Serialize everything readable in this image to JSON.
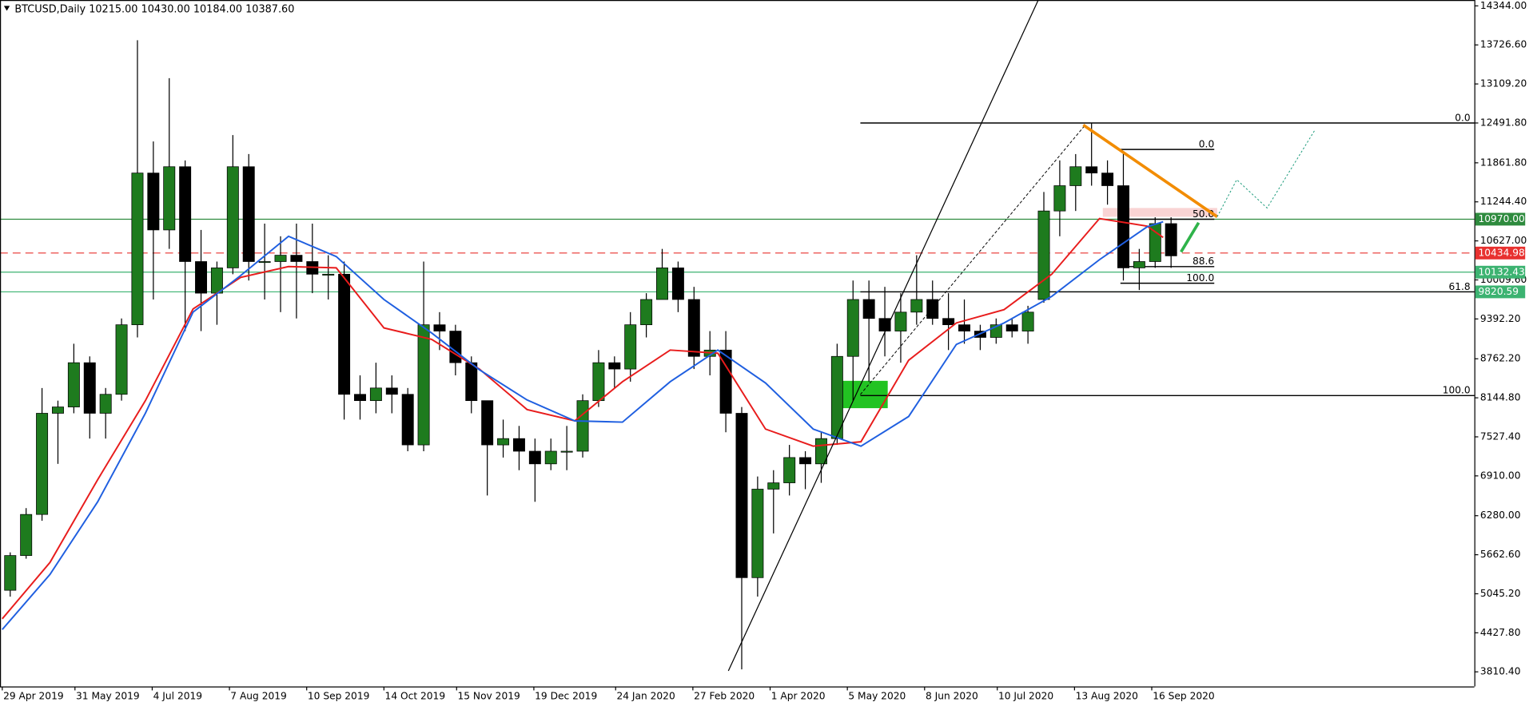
{
  "chart_data": {
    "type": "candlestick",
    "title": "BTCUSD,Daily  10215.00 10430.00 10184.00 10387.60",
    "xlim": [
      "2019-04-28",
      "2021-02-05"
    ],
    "ylim": [
      3579,
      14437
    ],
    "xticks": [
      {
        "value": "2019-04-29",
        "label": "29 Apr 2019"
      },
      {
        "value": "2019-05-31",
        "label": "31 May 2019"
      },
      {
        "value": "2019-07-04",
        "label": "4 Jul 2019"
      },
      {
        "value": "2019-08-07",
        "label": "7 Aug 2019"
      },
      {
        "value": "2019-09-10",
        "label": "10 Sep 2019"
      },
      {
        "value": "2019-10-14",
        "label": "14 Oct 2019"
      },
      {
        "value": "2019-11-15",
        "label": "15 Nov 2019"
      },
      {
        "value": "2019-12-19",
        "label": "19 Dec 2019"
      },
      {
        "value": "2020-01-24",
        "label": "24 Jan 2020"
      },
      {
        "value": "2020-02-27",
        "label": "27 Feb 2020"
      },
      {
        "value": "2020-04-01",
        "label": "1 Apr 2020"
      },
      {
        "value": "2020-05-05",
        "label": "5 May 2020"
      },
      {
        "value": "2020-06-08",
        "label": "8 Jun 2020"
      },
      {
        "value": "2020-07-10",
        "label": "10 Jul 2020"
      },
      {
        "value": "2020-08-13",
        "label": "13 Aug 2020"
      },
      {
        "value": "2020-09-16",
        "label": "16 Sep 2020"
      }
    ],
    "yticks": [
      {
        "value": 14344,
        "label": "14344.00"
      },
      {
        "value": 13726.6,
        "label": "13726.60"
      },
      {
        "value": 13109.2,
        "label": "13109.20"
      },
      {
        "value": 12491.8,
        "label": "12491.80"
      },
      {
        "value": 11861.8,
        "label": "11861.80"
      },
      {
        "value": 11244.4,
        "label": "11244.40"
      },
      {
        "value": 10627,
        "label": "10627.00"
      },
      {
        "value": 10009.6,
        "label": "10009.60"
      },
      {
        "value": 9392.2,
        "label": "9392.20"
      },
      {
        "value": 8762.2,
        "label": "8762.20"
      },
      {
        "value": 8144.8,
        "label": "8144.80"
      },
      {
        "value": 7527.4,
        "label": "7527.40"
      },
      {
        "value": 6910,
        "label": "6910.00"
      },
      {
        "value": 6280,
        "label": "6280.00"
      },
      {
        "value": 5662.6,
        "label": "5662.60"
      },
      {
        "value": 5045.2,
        "label": "5045.20"
      },
      {
        "value": 4427.8,
        "label": "4427.80"
      },
      {
        "value": 3810.4,
        "label": "3810.40"
      }
    ],
    "up_color": "#1e7b1e",
    "down_color": "#000000",
    "x": [
      "2019-04-29",
      "2019-05-06",
      "2019-05-13",
      "2019-05-20",
      "2019-05-27",
      "2019-06-03",
      "2019-06-10",
      "2019-06-17",
      "2019-06-24",
      "2019-07-01",
      "2019-07-08",
      "2019-07-15",
      "2019-07-22",
      "2019-07-29",
      "2019-08-05",
      "2019-08-12",
      "2019-08-19",
      "2019-08-26",
      "2019-09-02",
      "2019-09-09",
      "2019-09-16",
      "2019-09-23",
      "2019-09-30",
      "2019-10-07",
      "2019-10-14",
      "2019-10-21",
      "2019-10-28",
      "2019-11-04",
      "2019-11-11",
      "2019-11-18",
      "2019-11-25",
      "2019-12-02",
      "2019-12-09",
      "2019-12-16",
      "2019-12-23",
      "2019-12-30",
      "2020-01-06",
      "2020-01-13",
      "2020-01-20",
      "2020-01-27",
      "2020-02-03",
      "2020-02-10",
      "2020-02-17",
      "2020-02-24",
      "2020-03-02",
      "2020-03-09",
      "2020-03-16",
      "2020-03-23",
      "2020-03-30",
      "2020-04-06",
      "2020-04-13",
      "2020-04-20",
      "2020-04-27",
      "2020-05-04",
      "2020-05-11",
      "2020-05-18",
      "2020-05-25",
      "2020-06-01",
      "2020-06-08",
      "2020-06-15",
      "2020-06-22",
      "2020-06-29",
      "2020-07-06",
      "2020-07-13",
      "2020-07-20",
      "2020-07-27",
      "2020-08-03",
      "2020-08-10",
      "2020-08-17",
      "2020-08-24",
      "2020-08-31",
      "2020-09-07",
      "2020-09-14",
      "2020-09-21"
    ],
    "open": [
      5100,
      5650,
      6300,
      7900,
      8000,
      8700,
      7900,
      8200,
      9300,
      11700,
      10800,
      11800,
      10300,
      9800,
      10200,
      11800,
      10300,
      10300,
      10400,
      10300,
      10100,
      10100,
      8200,
      8100,
      8300,
      8200,
      7400,
      9300,
      9200,
      8700,
      8100,
      7400,
      7500,
      7300,
      7100,
      7300,
      7300,
      8100,
      8700,
      8600,
      9300,
      9700,
      10200,
      9700,
      8800,
      8900,
      7900,
      5300,
      6700,
      6800,
      7200,
      7100,
      7500,
      8800,
      9700,
      9400,
      9200,
      9500,
      9700,
      9400,
      9300,
      9200,
      9100,
      9300,
      9200,
      9700,
      11100,
      11500,
      11800,
      11700,
      11500,
      10200,
      10300,
      10900
    ],
    "high": [
      5700,
      6400,
      8300,
      8100,
      9000,
      8800,
      8300,
      9400,
      13800,
      12200,
      13200,
      11900,
      10800,
      10300,
      12300,
      12000,
      10900,
      10700,
      10900,
      10900,
      10400,
      10300,
      8500,
      8700,
      8500,
      8300,
      10300,
      9500,
      9300,
      8800,
      8100,
      7800,
      7700,
      7500,
      7500,
      7700,
      8200,
      8900,
      8800,
      9500,
      9800,
      10500,
      10300,
      9900,
      9200,
      9200,
      8000,
      6900,
      7000,
      7400,
      7300,
      7600,
      9000,
      10000,
      10000,
      9900,
      9800,
      10400,
      10000,
      9800,
      9700,
      9300,
      9400,
      9400,
      9600,
      11400,
      11900,
      12000,
      12490,
      11900,
      12050,
      10500,
      11000,
      11000
    ],
    "low": [
      5000,
      5600,
      6200,
      7100,
      7900,
      7500,
      7500,
      8100,
      9100,
      9700,
      10500,
      9200,
      9200,
      9300,
      10100,
      10000,
      9700,
      9500,
      9400,
      9800,
      9700,
      7800,
      7800,
      7900,
      7900,
      7300,
      7300,
      8900,
      8500,
      7900,
      6600,
      7200,
      7000,
      6500,
      7000,
      7000,
      7200,
      8000,
      8300,
      8400,
      9100,
      9700,
      9500,
      8600,
      8500,
      7600,
      3850,
      5000,
      6000,
      6600,
      6700,
      6800,
      7400,
      8100,
      8400,
      8800,
      8700,
      9300,
      9300,
      8900,
      9000,
      8900,
      9000,
      9100,
      9000,
      9650,
      10700,
      11100,
      11500,
      11200,
      10000,
      9850,
      10200,
      10200
    ],
    "close": [
      5650,
      6300,
      7900,
      8000,
      8700,
      7900,
      8200,
      9300,
      11700,
      10800,
      11800,
      10300,
      9800,
      10200,
      11800,
      10300,
      10300,
      10400,
      10300,
      10100,
      10100,
      8200,
      8100,
      8300,
      8200,
      7400,
      9300,
      9200,
      8700,
      8100,
      7400,
      7500,
      7300,
      7100,
      7300,
      7300,
      8100,
      8700,
      8600,
      9300,
      9700,
      10200,
      9700,
      8800,
      8900,
      7900,
      5300,
      6700,
      6800,
      7200,
      7100,
      7500,
      8800,
      9700,
      9400,
      9200,
      9500,
      9700,
      9400,
      9300,
      9200,
      9100,
      9300,
      9200,
      9500,
      11100,
      11500,
      11800,
      11700,
      11500,
      10200,
      10300,
      10900,
      10390
    ],
    "moving_averages": [
      {
        "color": "#e81c1c",
        "x": [
          "2019-04-29",
          "2019-05-20",
          "2019-06-10",
          "2019-07-01",
          "2019-07-22",
          "2019-08-12",
          "2019-09-02",
          "2019-09-23",
          "2019-10-14",
          "2019-11-04",
          "2019-11-25",
          "2019-12-16",
          "2020-01-06",
          "2020-01-27",
          "2020-02-17",
          "2020-03-09",
          "2020-03-30",
          "2020-04-20",
          "2020-05-11",
          "2020-06-01",
          "2020-06-22",
          "2020-07-13",
          "2020-08-03",
          "2020-08-24",
          "2020-09-14",
          "2020-09-21"
        ],
        "values": [
          4650,
          5540,
          6850,
          8100,
          9550,
          10050,
          10220,
          10200,
          9250,
          9070,
          8600,
          7960,
          7780,
          8400,
          8900,
          8850,
          7650,
          7380,
          7450,
          8740,
          9330,
          9540,
          10100,
          10980,
          10860,
          10681
        ]
      },
      {
        "color": "#1f5fe0",
        "x": [
          "2019-04-29",
          "2019-05-20",
          "2019-06-10",
          "2019-07-01",
          "2019-07-22",
          "2019-08-12",
          "2019-09-02",
          "2019-09-23",
          "2019-10-14",
          "2019-11-04",
          "2019-11-25",
          "2019-12-16",
          "2020-01-06",
          "2020-01-27",
          "2020-02-17",
          "2020-03-09",
          "2020-03-30",
          "2020-04-20",
          "2020-05-11",
          "2020-06-01",
          "2020-06-22",
          "2020-07-13",
          "2020-08-03",
          "2020-08-24",
          "2020-09-14",
          "2020-09-21"
        ],
        "values": [
          4480,
          5350,
          6500,
          7900,
          9500,
          10080,
          10700,
          10380,
          9700,
          9170,
          8590,
          8110,
          7780,
          7760,
          8400,
          8900,
          8380,
          7650,
          7380,
          7850,
          8990,
          9330,
          9750,
          10330,
          10850,
          10930
        ]
      }
    ],
    "price_lines": [
      {
        "value": 10970,
        "label": "10970.00",
        "color": "#2e8b3e",
        "style": "solid"
      },
      {
        "value": 10434.98,
        "label": "10434.98",
        "color": "#e8312f",
        "style": "dashed"
      },
      {
        "value": 10132.43,
        "label": "10132.43",
        "color": "#3cb371",
        "style": "solid"
      },
      {
        "value": 9820.59,
        "label": "9820.59",
        "color": "#3cb371",
        "style": "solid"
      }
    ],
    "fibonacci": [
      {
        "levels": [
          {
            "label": "0.0",
            "value": 12491.8
          },
          {
            "label": "61.8",
            "value": 9820.59
          },
          {
            "label": "100.0",
            "value": 8180
          }
        ]
      },
      {
        "levels": [
          {
            "label": "0.0",
            "value": 12073
          },
          {
            "label": "50.0",
            "value": 10970
          },
          {
            "label": "88.6",
            "value": 10220
          },
          {
            "label": "100.0",
            "value": 9957
          }
        ]
      }
    ]
  }
}
